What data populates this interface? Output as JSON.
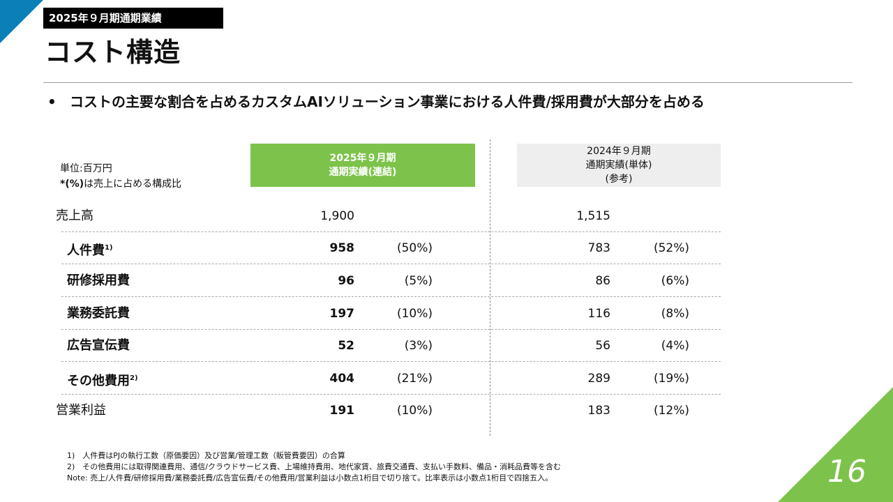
{
  "header": {
    "tag": "2025年９月期通期業績",
    "title": "コスト構造",
    "bullet": "コストの主要な割合を占めるカスタムAIソリューション事業における人件費/採用費が大部分を占める"
  },
  "unit": {
    "line1": "単位:百万円",
    "line2_prefix": "*(%)",
    "line2_rest": "は売上に占める構成比"
  },
  "columns": {
    "fy2025": {
      "line1": "2025年９月期",
      "line2": "通期実績(連結)"
    },
    "fy2024": {
      "line1": "2024年９月期",
      "line2": "通期実績(単体)",
      "line3": "(参考)"
    }
  },
  "rows": [
    {
      "label": "売上高",
      "sup": "",
      "v2025": "1,900",
      "p2025": "",
      "v2024": "1,515",
      "p2024": ""
    },
    {
      "label": "人件費",
      "sup": "1)",
      "v2025": "958",
      "p2025": "(50%)",
      "v2024": "783",
      "p2024": "(52%)"
    },
    {
      "label": "研修採用費",
      "sup": "",
      "v2025": "96",
      "p2025": "(5%)",
      "v2024": "86",
      "p2024": "(6%)"
    },
    {
      "label": "業務委託費",
      "sup": "",
      "v2025": "197",
      "p2025": "(10%)",
      "v2024": "116",
      "p2024": "(8%)"
    },
    {
      "label": "広告宣伝費",
      "sup": "",
      "v2025": "52",
      "p2025": "(3%)",
      "v2024": "56",
      "p2024": "(4%)"
    },
    {
      "label": "その他費用",
      "sup": "2)",
      "v2025": "404",
      "p2025": "(21%)",
      "v2024": "289",
      "p2024": "(19%)"
    },
    {
      "label": "営業利益",
      "sup": "",
      "v2025": "191",
      "p2025": "(10%)",
      "v2024": "183",
      "p2024": "(12%)"
    }
  ],
  "footnotes": {
    "n1": "1)　人件費はPJの執行工数（原価要因）及び営業/管理工数（販管費要因）の合算",
    "n2": "2)　その他費用には取得関連費用、通信/クラウドサービス費、上場維持費用、地代家賃、旅費交通費、支払い手数料、備品・消耗品費等を含む",
    "note": "Note: 売上/人件費/研修採用費/業務委託費/広告宣伝費/その他費用/営業利益は小数点1桁目で切り捨て。比率表示は小数点1桁目で四捨五入。"
  },
  "page_number": "16",
  "colors": {
    "accent_green": "#7dc34b",
    "accent_blue": "#0a7fb8"
  }
}
